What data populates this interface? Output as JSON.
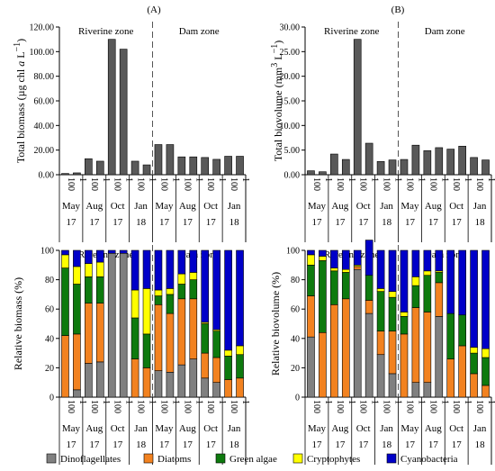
{
  "figure": {
    "panel_a_label": "(A)",
    "panel_b_label": "(B)",
    "legend": [
      {
        "label": "Dinoflagellates",
        "color": "#808080"
      },
      {
        "label": "Diatoms",
        "color": "#f28220"
      },
      {
        "label": "Green algae",
        "color": "#0e7a0e"
      },
      {
        "label": "Cryptophytes",
        "color": "#ffff00"
      },
      {
        "label": "Cyanobacteria",
        "color": "#0000c8"
      }
    ]
  },
  "chart_data": [
    {
      "id": "total-biomass",
      "type": "bar",
      "ylabel_html": "Total biomass (µg chl <i>a</i> L<sup>−1</sup>)",
      "ylim": [
        0,
        120
      ],
      "yticks": [
        "0.00",
        "20.00",
        "40.00",
        "60.00",
        "80.00",
        "100.00",
        "120.00"
      ],
      "zones": [
        "Riverine zone",
        "Dam zone"
      ],
      "depths": [
        "100",
        "1"
      ],
      "months": [
        "May",
        "Aug",
        "Oct",
        "Jan"
      ],
      "years": [
        "17",
        "17",
        "17",
        "18"
      ],
      "values": [
        1,
        1.5,
        13,
        11,
        110,
        102,
        11,
        8,
        24.5,
        24.5,
        14.5,
        14.5,
        14,
        12.5,
        15,
        15
      ],
      "bar_color": "#595959"
    },
    {
      "id": "total-biovolume",
      "type": "bar",
      "ylabel_html": "Total biovolume (mm<sup>3</sup> L<sup>−1</sup>)",
      "ylim": [
        0,
        30
      ],
      "yticks": [
        "0.00",
        "5.00",
        "10.00",
        "15.00",
        "20.00",
        "25.00",
        "30.00"
      ],
      "zones": [
        "Riverine zone",
        "Dam zone"
      ],
      "depths": [
        "100",
        "1"
      ],
      "months": [
        "May",
        "Aug",
        "Oct",
        "Jan"
      ],
      "years": [
        "17",
        "17",
        "17",
        "18"
      ],
      "values": [
        0.8,
        0.6,
        4.2,
        3.1,
        27.5,
        6.4,
        2.7,
        3.0,
        3.1,
        6.0,
        4.9,
        5.5,
        5.2,
        5.8,
        3.5,
        3.0
      ],
      "bar_color": "#595959"
    },
    {
      "id": "relative-biomass",
      "type": "bar",
      "stacked": true,
      "ylabel_html": "Relative biomass (%)",
      "ylim": [
        0,
        100
      ],
      "yticks": [
        "0",
        "20",
        "40",
        "60",
        "80",
        "100"
      ],
      "zones": [
        "Riverine zone",
        "Dam zone"
      ],
      "depths": [
        "100",
        "1"
      ],
      "months": [
        "May",
        "Aug",
        "Oct",
        "Jan"
      ],
      "years": [
        "17",
        "17",
        "17",
        "18"
      ],
      "series": [
        {
          "name": "Dinoflagellates",
          "values": [
            0,
            5,
            23,
            24,
            98,
            98,
            0,
            0,
            18,
            17,
            22,
            26,
            13,
            10,
            0,
            0
          ]
        },
        {
          "name": "Diatoms",
          "values": [
            42,
            38,
            41,
            40,
            0,
            0,
            26,
            20,
            45,
            40,
            45,
            41,
            17,
            17,
            12,
            13
          ]
        },
        {
          "name": "Green algae",
          "values": [
            46,
            34,
            18,
            18,
            0,
            0,
            28,
            23,
            6,
            13,
            10,
            13,
            20,
            18,
            16,
            16
          ]
        },
        {
          "name": "Cryptophytes",
          "values": [
            9,
            12,
            9,
            10,
            0,
            0,
            19,
            31,
            4,
            4,
            7,
            5,
            1,
            1,
            4,
            6
          ]
        },
        {
          "name": "Cyanobacteria",
          "values": [
            3,
            11,
            9,
            8,
            2,
            2,
            27,
            26,
            27,
            26,
            16,
            15,
            49,
            54,
            68,
            65
          ]
        }
      ]
    },
    {
      "id": "relative-biovolume",
      "type": "bar",
      "stacked": true,
      "ylabel_html": "Relative biovolume (%)",
      "ylim": [
        0,
        100
      ],
      "yticks": [
        "0",
        "20",
        "40",
        "60",
        "80",
        "100"
      ],
      "zones": [
        "Riverine zone",
        "Dam zone"
      ],
      "depths": [
        "100",
        "1"
      ],
      "months": [
        "May",
        "Aug",
        "Oct",
        "Jan"
      ],
      "years": [
        "17",
        "17",
        "17",
        "18"
      ],
      "series": [
        {
          "name": "Dinoflagellates",
          "values": [
            41,
            0,
            0,
            0,
            87,
            57,
            29,
            16,
            0,
            10,
            10,
            55,
            0,
            0,
            0,
            0
          ]
        },
        {
          "name": "Diatoms",
          "values": [
            28,
            44,
            63,
            67,
            2,
            9,
            16,
            29,
            43,
            51,
            48,
            23,
            26,
            35,
            16,
            8
          ]
        },
        {
          "name": "Green algae",
          "values": [
            21,
            49,
            23,
            18,
            0,
            17,
            27,
            23,
            12,
            15,
            25,
            7,
            31,
            21,
            14,
            19
          ]
        },
        {
          "name": "Cryptophytes",
          "values": [
            7,
            3,
            2,
            2,
            1,
            0,
            2,
            4,
            3,
            6,
            3,
            1,
            0,
            0,
            4,
            6
          ]
        },
        {
          "name": "Cyanobacteria",
          "values": [
            3,
            4,
            12,
            13,
            10,
            24,
            26,
            28,
            42,
            18,
            14,
            14,
            43,
            44,
            66,
            67
          ]
        }
      ]
    }
  ]
}
